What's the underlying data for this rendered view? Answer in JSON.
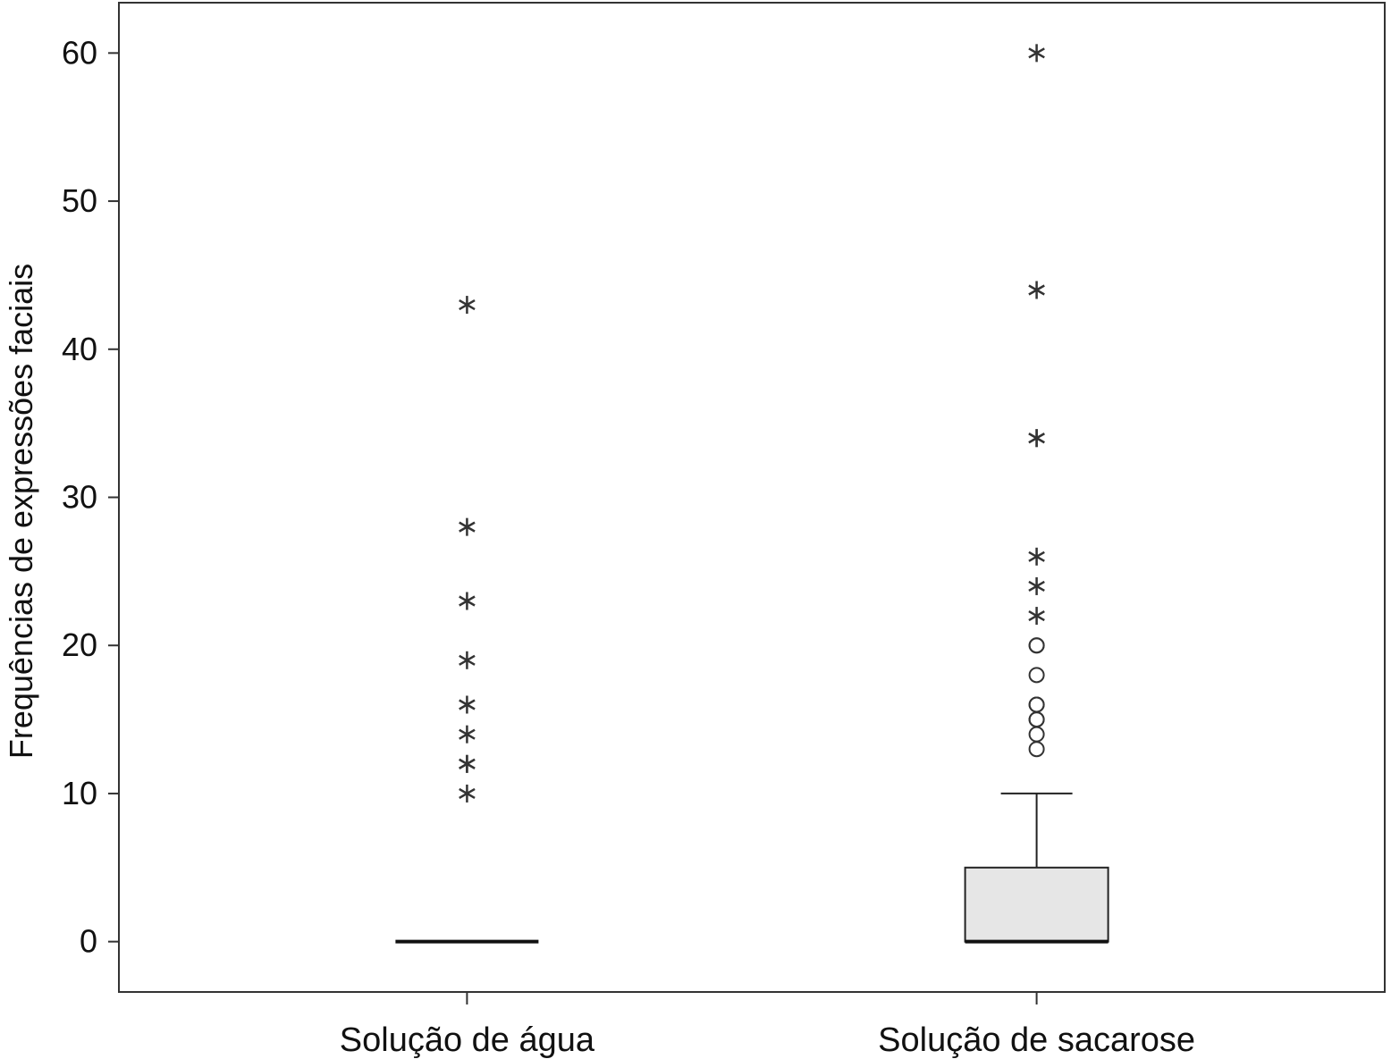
{
  "chart_data": {
    "type": "boxplot",
    "ylabel": "Frequências de expressões faciais",
    "xlabel": "",
    "ylim": [
      -3.4,
      63.4
    ],
    "yticks": [
      0,
      10,
      20,
      30,
      40,
      50,
      60
    ],
    "grid": false,
    "legend": "none",
    "categories": [
      "Solução de água",
      "Solução de sacarose"
    ],
    "series": [
      {
        "category": "Solução de água",
        "min": 0,
        "q1": 0,
        "median": 0,
        "q3": 0,
        "max": 0,
        "outliers": [],
        "extremes": [
          10,
          12,
          12,
          14,
          16,
          19,
          23,
          28,
          43
        ]
      },
      {
        "category": "Solução de sacarose",
        "min": 0,
        "q1": 0,
        "median": 0,
        "q3": 5,
        "max": 10,
        "outliers": [
          13,
          14,
          15,
          15,
          16,
          16,
          18,
          20,
          20
        ],
        "extremes": [
          22,
          24,
          26,
          34,
          34,
          44,
          60
        ]
      }
    ],
    "colors": {
      "box_fill": "#e6e6e6",
      "stroke": "#222222",
      "extreme_marker": "#333333",
      "outlier_marker": "#333333"
    }
  }
}
